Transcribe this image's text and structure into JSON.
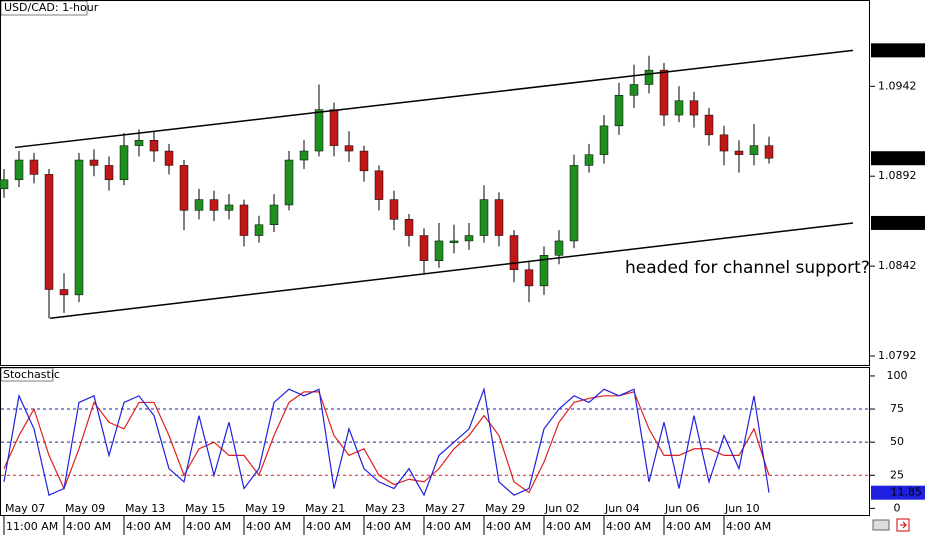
{
  "chart_data": [
    {
      "type": "candlestick",
      "title": "USD/CAD: 1-hour",
      "categories": [
        "May 07",
        null,
        null,
        null,
        "May 09",
        null,
        null,
        null,
        "May 13",
        null,
        null,
        null,
        "May 15",
        null,
        null,
        null,
        "May 19",
        null,
        null,
        null,
        "May 21",
        null,
        null,
        null,
        "May 23",
        null,
        null,
        null,
        "May 27",
        null,
        null,
        null,
        "May 29",
        null,
        null,
        null,
        "Jun 02",
        null,
        null,
        null,
        "Jun 04",
        null,
        null,
        null,
        "Jun 06",
        null,
        null,
        null,
        "Jun 10",
        null,
        null,
        null
      ],
      "times": [
        "11:00 AM",
        null,
        null,
        null,
        "4:00 AM",
        null,
        null,
        null,
        "4:00 AM",
        null,
        null,
        null,
        "4:00 AM",
        null,
        null,
        null,
        "4:00 AM",
        null,
        null,
        null,
        "4:00 AM",
        null,
        null,
        null,
        "4:00 AM",
        null,
        null,
        null,
        "4:00 AM",
        null,
        null,
        null,
        "4:00 AM",
        null,
        null,
        null,
        "4:00 AM",
        null,
        null,
        null,
        "4:00 AM",
        null,
        null,
        null,
        "4:00 AM",
        null,
        null,
        null,
        "4:00 AM",
        null,
        null,
        null
      ],
      "open": [
        1.0885,
        1.089,
        1.0901,
        1.0893,
        1.0829,
        1.0826,
        1.0901,
        1.0898,
        1.089,
        1.0909,
        1.0912,
        1.0906,
        1.0898,
        1.0873,
        1.0879,
        1.0873,
        1.0876,
        1.0859,
        1.0865,
        1.0876,
        1.0901,
        1.0906,
        1.0929,
        1.0909,
        1.0906,
        1.0895,
        1.0879,
        1.0868,
        1.0859,
        1.0845,
        1.0855,
        1.0856,
        1.0859,
        1.0879,
        1.0859,
        1.084,
        1.0831,
        1.0848,
        1.0856,
        1.0898,
        1.0904,
        1.092,
        1.0937,
        1.0943,
        1.0951,
        1.0926,
        1.0934,
        1.0926,
        1.0915,
        1.0906,
        1.0904,
        1.0909
      ],
      "high": [
        1.0896,
        1.0906,
        1.0905,
        1.0896,
        1.0838,
        1.0905,
        1.0907,
        1.0903,
        1.0916,
        1.0918,
        1.0917,
        1.091,
        1.0901,
        1.0885,
        1.0884,
        1.0882,
        1.0879,
        1.087,
        1.0882,
        1.0906,
        1.0912,
        1.0943,
        1.0933,
        1.0917,
        1.0909,
        1.0898,
        1.0884,
        1.0871,
        1.0863,
        1.0866,
        1.0865,
        1.0866,
        1.0887,
        1.0883,
        1.0862,
        1.0845,
        1.0853,
        1.0862,
        1.0904,
        1.091,
        1.0926,
        1.0944,
        1.0954,
        1.0959,
        1.0955,
        1.0942,
        1.0939,
        1.093,
        1.092,
        1.0912,
        1.0921,
        1.0914
      ],
      "low": [
        1.088,
        1.0886,
        1.0888,
        1.0813,
        1.0816,
        1.0822,
        1.0892,
        1.0884,
        1.0887,
        1.0903,
        1.09,
        1.0893,
        1.0862,
        1.0868,
        1.0867,
        1.0868,
        1.0853,
        1.0855,
        1.0861,
        1.0873,
        1.0896,
        1.0903,
        1.0903,
        1.09,
        1.0889,
        1.0873,
        1.0862,
        1.0853,
        1.0838,
        1.0841,
        1.0849,
        1.0851,
        1.0855,
        1.0853,
        1.0833,
        1.0822,
        1.0826,
        1.0843,
        1.0852,
        1.0894,
        1.0899,
        1.0915,
        1.093,
        1.0938,
        1.092,
        1.0922,
        1.0919,
        1.0909,
        1.0898,
        1.0894,
        1.0898,
        1.0899
      ],
      "close": [
        1.089,
        1.0901,
        1.0893,
        1.0829,
        1.0826,
        1.0901,
        1.0898,
        1.089,
        1.0909,
        1.0912,
        1.0906,
        1.0898,
        1.0873,
        1.0879,
        1.0873,
        1.0876,
        1.0859,
        1.0865,
        1.0876,
        1.0901,
        1.0906,
        1.0929,
        1.0909,
        1.0906,
        1.0895,
        1.0879,
        1.0868,
        1.0859,
        1.0845,
        1.0856,
        1.0856,
        1.0859,
        1.0879,
        1.0859,
        1.084,
        1.0831,
        1.0848,
        1.0856,
        1.0898,
        1.0904,
        1.092,
        1.0937,
        1.0943,
        1.0951,
        1.0926,
        1.0934,
        1.0926,
        1.0915,
        1.0906,
        1.0904,
        1.0909,
        1.0902
      ],
      "color_up": "#1f8f1f",
      "color_down": "#c01818",
      "ylim": [
        1.0787,
        1.099
      ],
      "yticks": [
        1.0942,
        1.0892,
        1.0842,
        1.0792
      ],
      "trendlines": [
        {
          "start": [
            0.73,
            1.0908
          ],
          "end": [
            56.6,
            1.0962
          ]
        },
        {
          "start": [
            3.07,
            1.0813
          ],
          "end": [
            56.6,
            1.0866
          ]
        }
      ],
      "annotation": "headed for channel support?"
    },
    {
      "type": "line",
      "title": "Stochastic",
      "series": [
        {
          "color": "#2020e0",
          "values": [
            20,
            85,
            60,
            10,
            15,
            80,
            85,
            40,
            80,
            85,
            70,
            30,
            20,
            70,
            25,
            65,
            15,
            30,
            80,
            90,
            85,
            90,
            15,
            60,
            30,
            20,
            15,
            30,
            10,
            40,
            50,
            60,
            90,
            20,
            10,
            15,
            60,
            75,
            85,
            80,
            90,
            85,
            90,
            20,
            65,
            15,
            70,
            20,
            55,
            30,
            85,
            11.85
          ]
        },
        {
          "color": "#e02020",
          "values": [
            30,
            55,
            75,
            40,
            15,
            45,
            80,
            65,
            60,
            80,
            80,
            55,
            25,
            45,
            50,
            40,
            40,
            25,
            55,
            80,
            88,
            88,
            55,
            40,
            45,
            25,
            18,
            22,
            20,
            30,
            45,
            55,
            70,
            55,
            20,
            12,
            35,
            65,
            80,
            83,
            85,
            85,
            88,
            60,
            40,
            40,
            45,
            45,
            40,
            40,
            60,
            25
          ]
        }
      ],
      "ylim": [
        -5,
        106
      ],
      "yticks": [
        100,
        75,
        50,
        25,
        0
      ],
      "levels": [
        75,
        50,
        25
      ],
      "level_colors": [
        "#2020a0",
        "#2020a0",
        "#e02020"
      ]
    }
  ]
}
